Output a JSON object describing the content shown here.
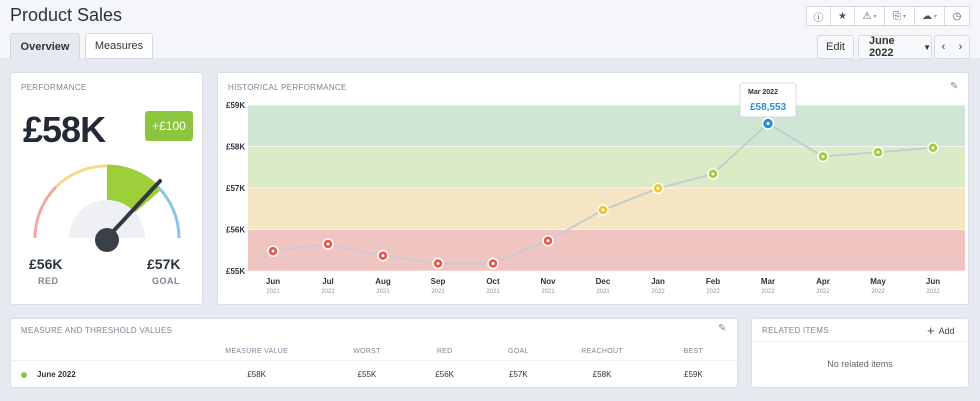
{
  "page": {
    "title": "Product Sales"
  },
  "toolbar": {
    "icons": [
      "info-icon",
      "star-icon",
      "alert-icon",
      "export-icon",
      "cloud-icon",
      "clock-icon"
    ]
  },
  "tabs": [
    {
      "label": "Overview",
      "active": true
    },
    {
      "label": "Measures",
      "active": false
    }
  ],
  "header_actions": {
    "edit_label": "Edit",
    "period_label": "June 2022"
  },
  "performance": {
    "title": "PERFORMANCE",
    "value": "£58K",
    "delta": "+£100",
    "red_value": "£56K",
    "red_label": "RED",
    "goal_value": "£57K",
    "goal_label": "GOAL"
  },
  "historical": {
    "title": "HISTORICAL PERFORMANCE"
  },
  "chart_data": {
    "type": "line",
    "categories": [
      "Jun 2021",
      "Jul 2021",
      "Aug 2021",
      "Sep 2021",
      "Oct 2021",
      "Nov 2021",
      "Dec 2021",
      "Jan 2022",
      "Feb 2022",
      "Mar 2022",
      "Apr 2022",
      "May 2022",
      "Jun 2022"
    ],
    "x_month": [
      "Jun",
      "Jul",
      "Aug",
      "Sep",
      "Oct",
      "Nov",
      "Dec",
      "Jan",
      "Feb",
      "Mar",
      "Apr",
      "May",
      "Jun"
    ],
    "x_year": [
      "2021",
      "2021",
      "2021",
      "2021",
      "2021",
      "2021",
      "2021",
      "2022",
      "2022",
      "2022",
      "2022",
      "2022",
      "2022"
    ],
    "values": [
      55480,
      55650,
      55370,
      55180,
      55180,
      55730,
      56470,
      56990,
      57340,
      58553,
      57760,
      57860,
      57970
    ],
    "point_status": [
      "red",
      "red",
      "red",
      "red",
      "red",
      "red",
      "yellow",
      "yellow",
      "green",
      "blue",
      "green",
      "green",
      "green"
    ],
    "ylim": [
      55000,
      59000
    ],
    "yticks": [
      "£59K",
      "£58K",
      "£57K",
      "£56K",
      "£55K"
    ],
    "bands": [
      {
        "from": 55000,
        "to": 56000,
        "color": "#f0c4c0"
      },
      {
        "from": 56000,
        "to": 57000,
        "color": "#f5e5c2"
      },
      {
        "from": 57000,
        "to": 58000,
        "color": "#dbebc6"
      },
      {
        "from": 58000,
        "to": 59000,
        "color": "#cfe6d4"
      }
    ],
    "tooltip": {
      "index": 9,
      "title": "Mar 2022",
      "value": "£58,553"
    }
  },
  "colors": {
    "red": "#e5574c",
    "yellow": "#efc631",
    "green": "#a5c93c",
    "blue": "#2c8fd8"
  },
  "measures": {
    "title": "MEASURE AND THRESHOLD VALUES",
    "columns": [
      "",
      "MEASURE VALUE",
      "WORST",
      "RED",
      "GOAL",
      "REACHOUT",
      "BEST"
    ],
    "row": {
      "label": "June 2022",
      "measure": "£58K",
      "worst": "£55K",
      "red": "£56K",
      "goal": "£57K",
      "reachout": "£58K",
      "best": "£59K"
    }
  },
  "related": {
    "title": "RELATED ITEMS",
    "add_label": "Add",
    "empty_text": "No related items"
  }
}
